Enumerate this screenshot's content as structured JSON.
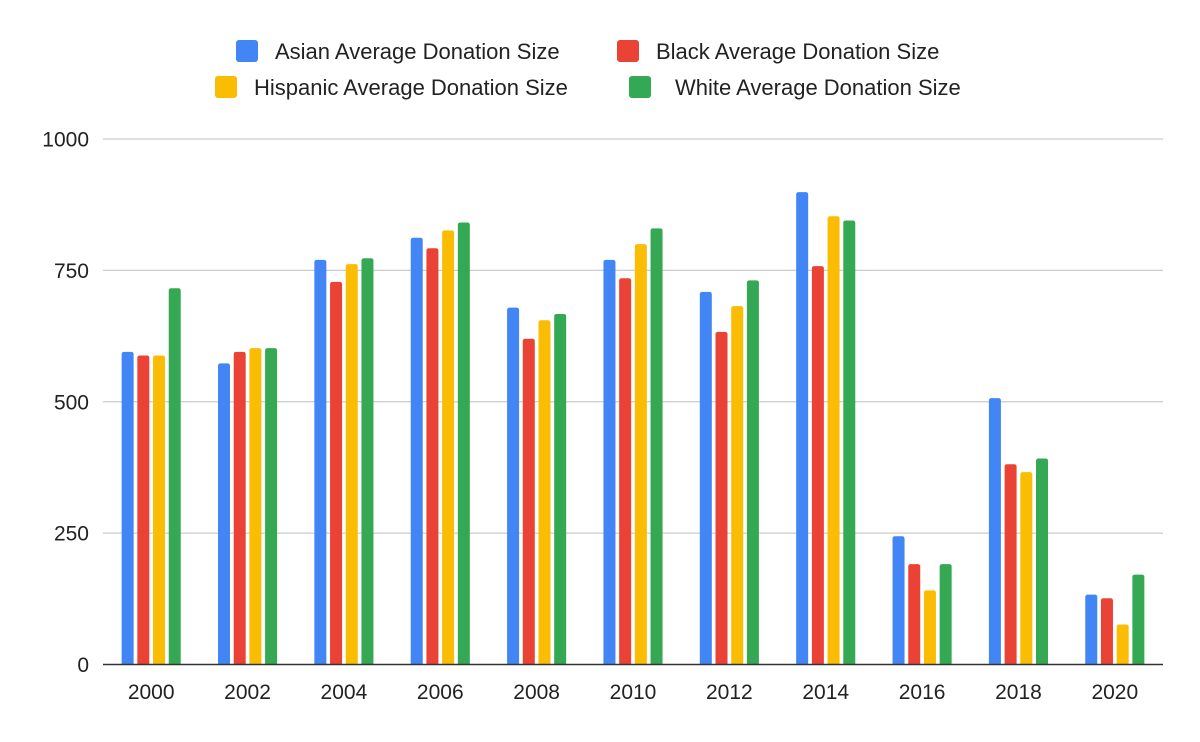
{
  "chart_data": {
    "type": "bar",
    "categories": [
      "2000",
      "2002",
      "2004",
      "2006",
      "2008",
      "2010",
      "2012",
      "2014",
      "2016",
      "2018",
      "2020"
    ],
    "series": [
      {
        "name": "Asian Average Donation Size",
        "color": "#4285F4",
        "values": [
          595,
          573,
          770,
          812,
          679,
          770,
          709,
          899,
          244,
          507,
          133
        ]
      },
      {
        "name": "Black Average Donation Size",
        "color": "#EA4335",
        "values": [
          588,
          595,
          728,
          792,
          620,
          735,
          633,
          758,
          191,
          381,
          126
        ]
      },
      {
        "name": "Hispanic Average Donation Size",
        "color": "#FBBC04",
        "values": [
          588,
          602,
          762,
          826,
          655,
          800,
          682,
          853,
          141,
          366,
          76
        ]
      },
      {
        "name": "White Average Donation Size",
        "color": "#34A853",
        "values": [
          716,
          602,
          773,
          841,
          667,
          830,
          731,
          845,
          191,
          392,
          171
        ]
      }
    ],
    "yticks": [
      "0",
      "250",
      "500",
      "750",
      "1000"
    ],
    "ylim": [
      0,
      1000
    ],
    "grid": true,
    "legend_position": "top"
  }
}
